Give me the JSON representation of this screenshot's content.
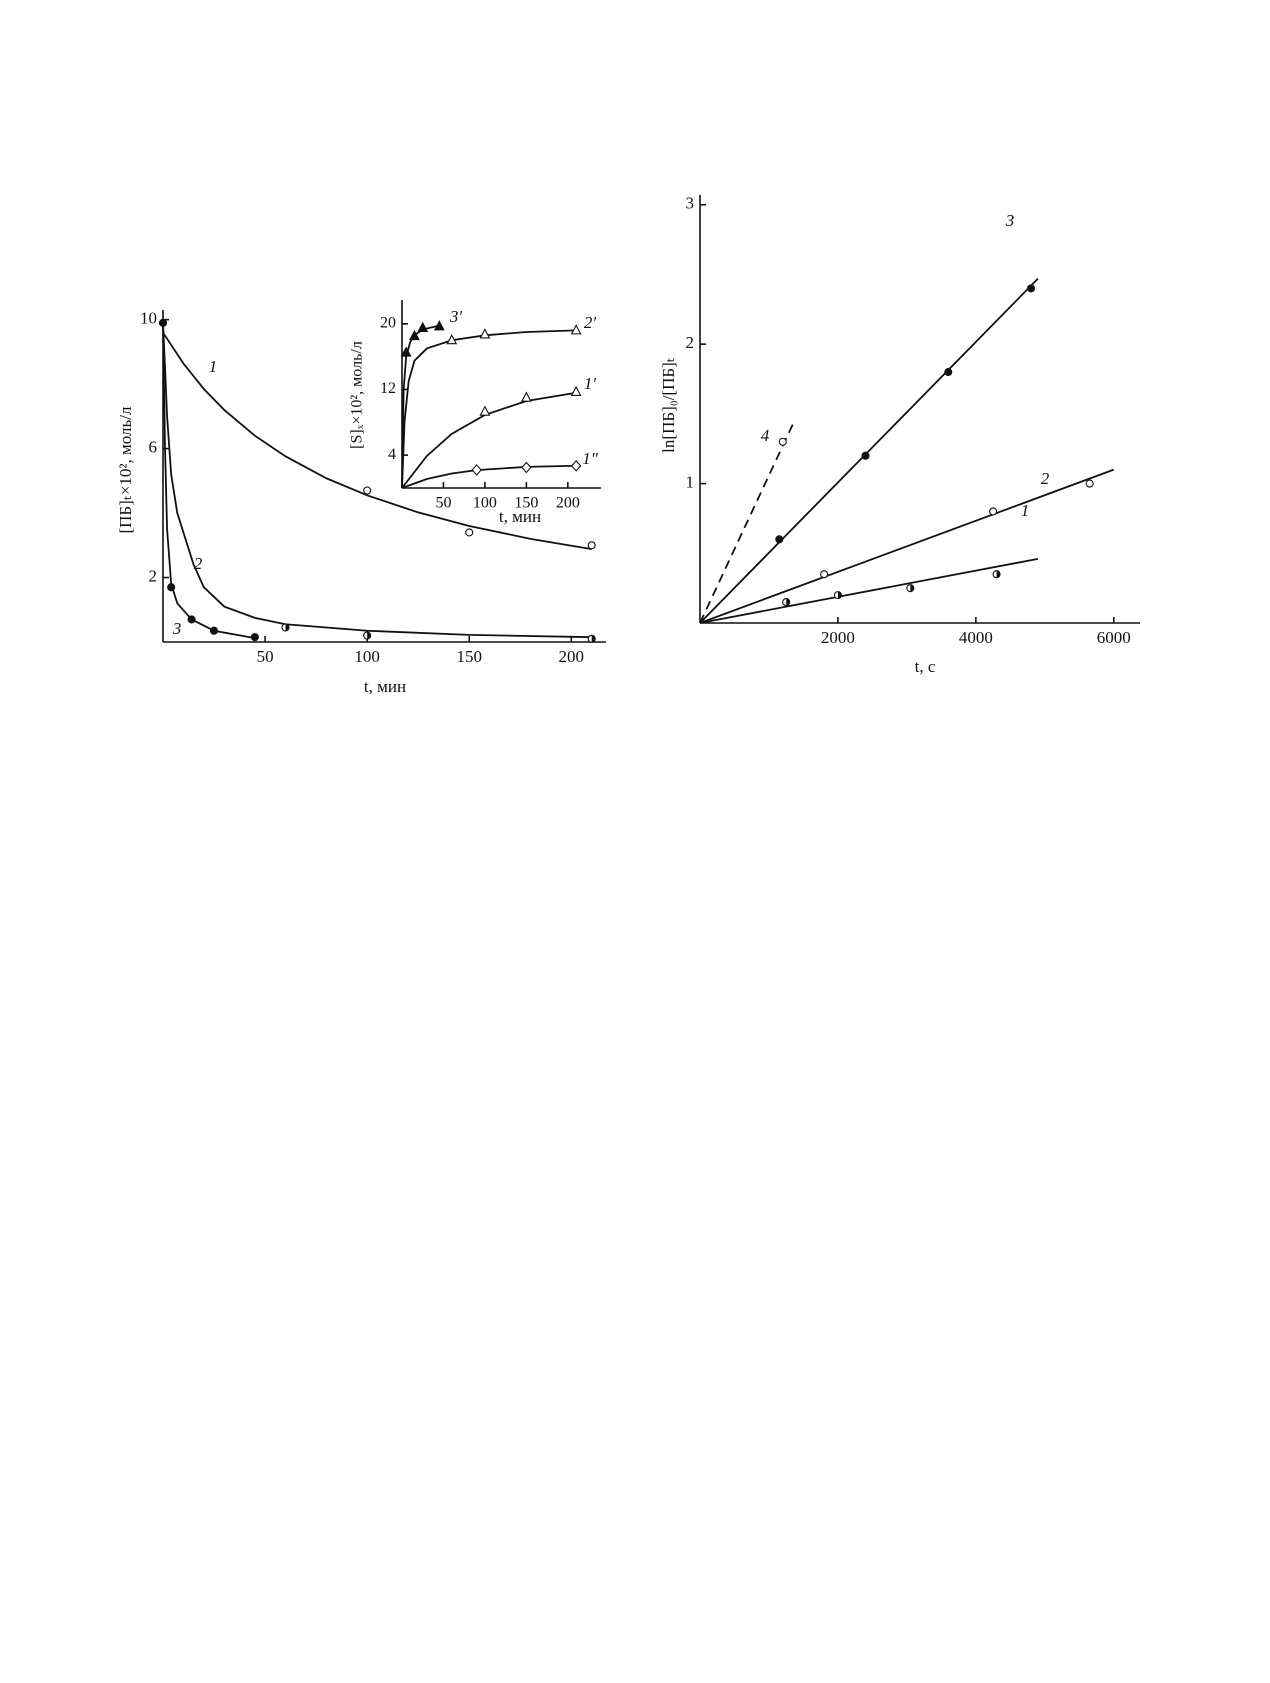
{
  "chart_data": [
    {
      "type": "line",
      "xlabel": "t, мин",
      "ylabel": "[ПБ]ₜ×10², моль/л",
      "xlim": [
        0,
        217
      ],
      "ylim": [
        0,
        10.3
      ],
      "xticks": [
        50,
        100,
        150,
        200
      ],
      "yticks": [
        2,
        6,
        10
      ],
      "series": [
        {
          "name": "1",
          "color": "#111",
          "marker": "open",
          "x": [
            0,
            10,
            20,
            30,
            45,
            60,
            80,
            100,
            125,
            150,
            180,
            210
          ],
          "values": [
            9.6,
            8.64,
            7.85,
            7.2,
            6.4,
            5.76,
            5.08,
            4.55,
            4.02,
            3.6,
            3.2,
            2.88
          ],
          "points_x": [
            100,
            150,
            210
          ],
          "points_y": [
            4.7,
            3.4,
            3.0
          ]
        },
        {
          "name": "2",
          "color": "#111",
          "marker": "half",
          "x": [
            0,
            1,
            2,
            4,
            7,
            11,
            15,
            20,
            30,
            45,
            60,
            100,
            150,
            210
          ],
          "values": [
            9.9,
            8.5,
            7,
            5.2,
            4,
            3.2,
            2.4,
            1.7,
            1.1,
            0.75,
            0.55,
            0.35,
            0.22,
            0.15
          ],
          "points_x": [
            60,
            100,
            210
          ],
          "points_y": [
            0.45,
            0.2,
            0.1
          ]
        },
        {
          "name": "3",
          "color": "#111",
          "marker": "filled",
          "x": [
            0,
            1,
            2,
            4,
            7,
            14,
            25,
            45
          ],
          "values": [
            9.9,
            6,
            3.5,
            1.8,
            1.2,
            0.7,
            0.35,
            0.12
          ],
          "points_x": [
            0,
            4,
            14,
            25,
            45
          ],
          "points_y": [
            9.9,
            1.7,
            0.7,
            0.35,
            0.15
          ]
        }
      ]
    },
    {
      "type": "line",
      "xlabel": "t, мин",
      "ylabel": "[S]ₓ×10², моль/л",
      "xlim": [
        0,
        240
      ],
      "ylim": [
        0,
        22.9
      ],
      "xticks": [
        50,
        100,
        150,
        200
      ],
      "yticks": [
        4,
        12,
        20
      ],
      "series": [
        {
          "name": "3′",
          "color": "#111",
          "marker": "filled-triangle",
          "x": [
            0,
            2,
            5,
            10,
            15,
            25,
            45
          ],
          "values": [
            0,
            12,
            16,
            17.8,
            18.6,
            19.3,
            19.8
          ],
          "points_x": [
            5,
            15,
            25,
            45
          ],
          "points_y": [
            16.5,
            18.5,
            19.5,
            19.7
          ]
        },
        {
          "name": "2′",
          "color": "#111",
          "marker": "open-triangle",
          "x": [
            0,
            3,
            8,
            15,
            30,
            60,
            100,
            150,
            210
          ],
          "values": [
            0,
            8,
            13,
            15.5,
            17,
            18,
            18.6,
            19,
            19.2
          ],
          "points_x": [
            60,
            100,
            210
          ],
          "points_y": [
            18,
            18.7,
            19.2
          ]
        },
        {
          "name": "1′",
          "color": "#111",
          "marker": "open-triangle",
          "x": [
            0,
            30,
            60,
            100,
            150,
            210
          ],
          "values": [
            0,
            3.9,
            6.6,
            8.9,
            10.6,
            11.6
          ],
          "points_x": [
            100,
            150,
            210
          ],
          "points_y": [
            9.3,
            11,
            11.7
          ]
        },
        {
          "name": "1″",
          "color": "#111",
          "marker": "diamond",
          "x": [
            0,
            30,
            60,
            90,
            150,
            210
          ],
          "values": [
            0,
            1.1,
            1.77,
            2.18,
            2.57,
            2.71
          ],
          "points_x": [
            90,
            150,
            210
          ],
          "points_y": [
            2.2,
            2.5,
            2.7
          ]
        }
      ]
    },
    {
      "type": "line",
      "xlabel": "t, с",
      "ylabel": "ln[ПБ]₀/[ПБ]ₜ",
      "xlim": [
        0,
        6380
      ],
      "ylim": [
        0,
        3.07
      ],
      "xticks": [
        2000,
        4000,
        6000
      ],
      "yticks": [
        1,
        2,
        3
      ],
      "series": [
        {
          "name": "3",
          "color": "#111",
          "marker": "filled",
          "x": [
            0,
            4900
          ],
          "values": [
            0,
            2.47
          ],
          "points_x": [
            1150,
            2400,
            3600,
            4800
          ],
          "points_y": [
            0.6,
            1.2,
            1.8,
            2.4
          ]
        },
        {
          "name": "2",
          "color": "#111",
          "marker": "open",
          "x": [
            0,
            6000
          ],
          "values": [
            0,
            1.1
          ],
          "points_x": [
            1800,
            4250,
            5650
          ],
          "points_y": [
            0.35,
            0.8,
            1.0
          ]
        },
        {
          "name": "1",
          "color": "#111",
          "marker": "half",
          "x": [
            0,
            4900
          ],
          "values": [
            0,
            0.46
          ],
          "points_x": [
            1250,
            2000,
            3050,
            4300
          ],
          "points_y": [
            0.15,
            0.2,
            0.25,
            0.35
          ]
        },
        {
          "name": "4",
          "color": "#111",
          "marker": "open",
          "dashed": true,
          "x": [
            0,
            1350
          ],
          "values": [
            0,
            1.43
          ],
          "points_x": [
            1200
          ],
          "points_y": [
            1.3
          ]
        }
      ]
    }
  ]
}
